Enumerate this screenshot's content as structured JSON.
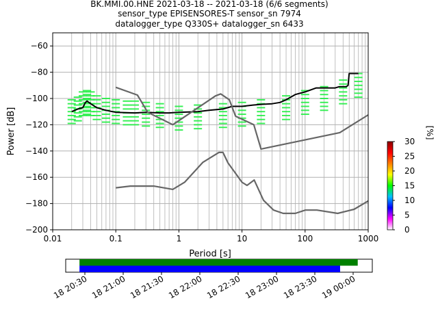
{
  "title_lines": [
    "BK.MMI.00.HNE   2021-03-18 -- 2021-03-18  (6/6 segments)",
    "sensor_type EPISENSORES-T sensor_sn 7974",
    "datalogger_type Q330S+ datalogger_sn 6433"
  ],
  "chart_data": [
    {
      "type": "heatmap",
      "title": "BK.MMI.00.HNE   2021-03-18 -- 2021-03-18  (6/6 segments)",
      "xlabel": "Period [s]",
      "ylabel": "Power [dB]",
      "xscale": "log",
      "xlim": [
        0.01,
        1000
      ],
      "ylim": [
        -200,
        -50
      ],
      "x_ticks": [
        0.01,
        0.1,
        1,
        10,
        100,
        1000
      ],
      "x_tick_labels": [
        "0.01",
        "0.1",
        "1",
        "10",
        "100",
        "1000"
      ],
      "y_ticks": [
        -60,
        -80,
        -100,
        -120,
        -140,
        -160,
        -180,
        -200
      ],
      "y_tick_labels": [
        "−60",
        "−80",
        "−100",
        "−120",
        "−140",
        "−160",
        "−180",
        "−200"
      ],
      "grid": true,
      "colorbar": {
        "label": "[%]",
        "min": 0,
        "max": 30,
        "ticks": [
          0,
          5,
          10,
          15,
          20,
          25,
          30
        ],
        "colors": [
          "#ffffff",
          "#ff00ff",
          "#0000ff",
          "#00bfff",
          "#00ff00",
          "#ffff00",
          "#ff8000",
          "#ff0000",
          "#8b0000"
        ]
      },
      "series": [
        {
          "role": "psd_band",
          "color": "#22ee44",
          "x": [
            0.02,
            0.025,
            0.03,
            0.035,
            0.04,
            0.05,
            0.07,
            0.1,
            0.15,
            0.2,
            0.3,
            0.5,
            1,
            2,
            5,
            10,
            20,
            50,
            100,
            200,
            400,
            700
          ],
          "y": [
            -110,
            -108,
            -104,
            -103,
            -104,
            -107,
            -109,
            -110,
            -111,
            -111,
            -112,
            -113,
            -115,
            -114,
            -113,
            -112,
            -110,
            -107,
            -103,
            -100,
            -95,
            -90
          ]
        },
        {
          "role": "mode_line",
          "name": "",
          "color": "#000000",
          "x": [
            0.02,
            0.025,
            0.03,
            0.033,
            0.035,
            0.04,
            0.05,
            0.07,
            0.1,
            0.2,
            0.3,
            0.5,
            0.7,
            1,
            2,
            3,
            5,
            7,
            10,
            15,
            20,
            30,
            40,
            50,
            70,
            100,
            150,
            200,
            300,
            350,
            400,
            450,
            480,
            500,
            700
          ],
          "y": [
            -110,
            -108,
            -107,
            -103,
            -102,
            -104,
            -107,
            -109,
            -110.5,
            -111,
            -110.5,
            -111,
            -111,
            -110.5,
            -110,
            -109,
            -108,
            -106,
            -106,
            -105,
            -104.5,
            -104,
            -103,
            -101,
            -97,
            -95,
            -92,
            -92,
            -92,
            -91,
            -91,
            -91,
            -90,
            -81,
            -81
          ]
        },
        {
          "role": "nhnm",
          "name": "",
          "color": "#666666",
          "x": [
            0.1,
            0.22,
            0.32,
            0.8,
            3.8,
            4.6,
            6.3,
            7.9,
            15.4,
            20,
            354.8,
            1000
          ],
          "y": [
            -91.5,
            -97.4,
            -110.5,
            -120,
            -98,
            -96.5,
            -101,
            -113.5,
            -120,
            -138.5,
            -126,
            -112.5
          ]
        },
        {
          "role": "nlnm",
          "name": "",
          "color": "#666666",
          "x": [
            0.1,
            0.17,
            0.4,
            0.8,
            1.24,
            2.4,
            4.3,
            5,
            6,
            10,
            12,
            15.6,
            21.9,
            31.6,
            45,
            70,
            101,
            154,
            328,
            600,
            1000
          ],
          "y": [
            -168,
            -166.7,
            -166.7,
            -169.2,
            -163.7,
            -148.6,
            -141.1,
            -141.1,
            -149,
            -163.8,
            -166.2,
            -162.1,
            -177.5,
            -185,
            -187.5,
            -187.5,
            -185,
            -185,
            -187.5,
            -184.4,
            -178
          ]
        }
      ]
    },
    {
      "type": "bar",
      "title": "",
      "xlabel": "",
      "ylabel": "",
      "x_tick_labels": [
        "18 20:30",
        "18 21:00",
        "18 21:30",
        "18 22:00",
        "18 22:30",
        "18 23:00",
        "18 23:30",
        "19 00:00"
      ],
      "x_tick_hours": [
        20.5,
        21,
        21.5,
        22,
        22.5,
        23,
        23.5,
        24
      ],
      "xlim_hours": [
        20.25,
        24.25
      ],
      "series": [
        {
          "name": "",
          "color": "#008000",
          "start_hour": 20.43,
          "end_hour": 24.06
        },
        {
          "name": "",
          "color": "#0000ff",
          "start_hour": 20.43,
          "end_hour": 23.83
        }
      ]
    }
  ]
}
